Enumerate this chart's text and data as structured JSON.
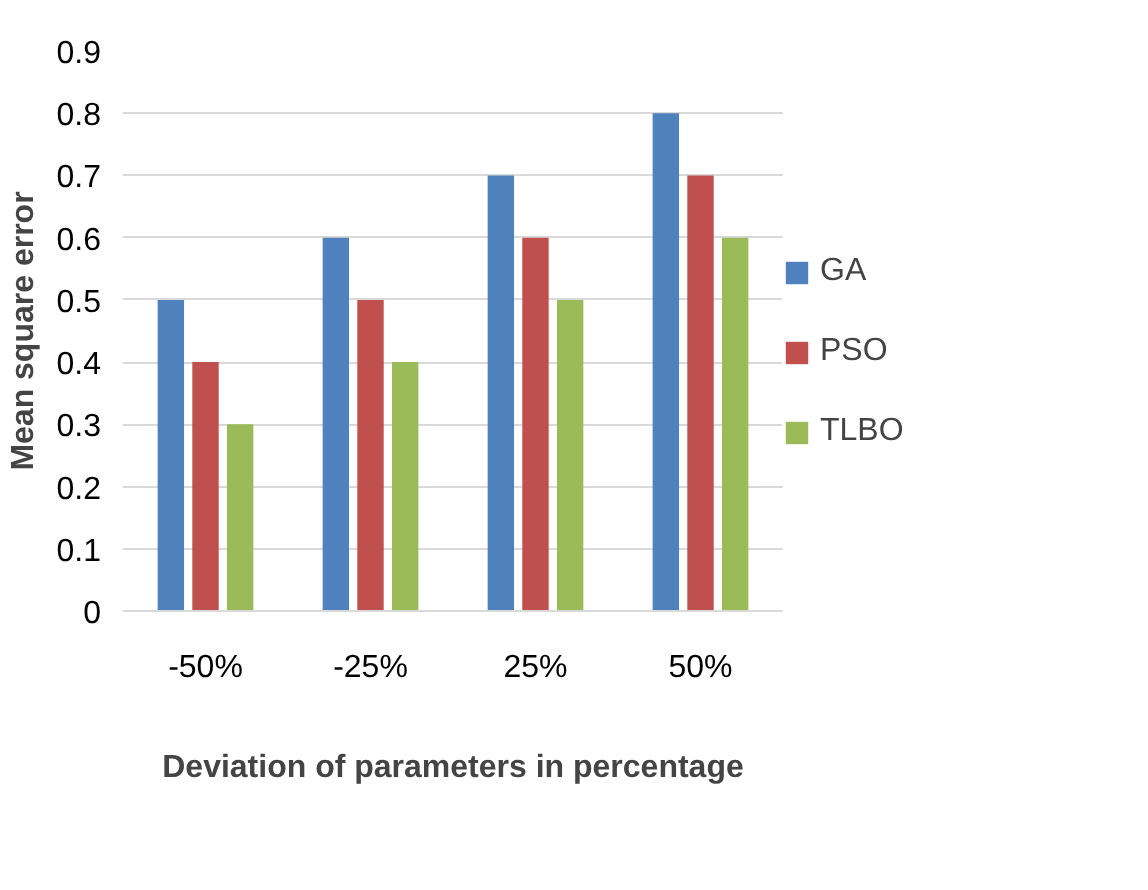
{
  "chart_data": {
    "type": "bar",
    "xlabel": "Deviation of parameters in percentage",
    "ylabel": "Mean square error",
    "categories": [
      "-50%",
      "-25%",
      "25%",
      "50%"
    ],
    "series": [
      {
        "name": "GA",
        "color": "#4f81bd",
        "values": [
          0.5,
          0.6,
          0.7,
          0.8
        ]
      },
      {
        "name": "PSO",
        "color": "#c0504d",
        "values": [
          0.4,
          0.5,
          0.6,
          0.7
        ]
      },
      {
        "name": "TLBO",
        "color": "#9bbb59",
        "values": [
          0.3,
          0.4,
          0.5,
          0.6
        ]
      }
    ],
    "ylim": [
      0,
      0.9
    ],
    "yticks": [
      0,
      0.1,
      0.2,
      0.3,
      0.4,
      0.5,
      0.6,
      0.7,
      0.8,
      0.9
    ],
    "grid": "y",
    "legend": "right"
  }
}
